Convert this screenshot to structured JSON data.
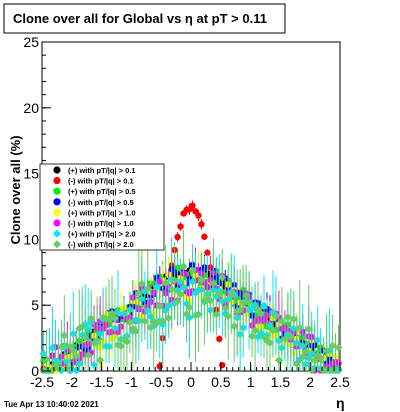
{
  "title": "Clone  over all for Global vs   η at pT > 0.11",
  "timestamp": "Tue Apr 13 10:40:02 2021",
  "chart_data": {
    "type": "scatter",
    "title": "Clone  over all for Global vs   η at pT > 0.11",
    "xlabel": "η",
    "ylabel": "Clone  over all (%)",
    "xlim": [
      -2.5,
      2.5
    ],
    "ylim": [
      0,
      25
    ],
    "x_ticks": [
      "-2.5",
      "-2",
      "-1.5",
      "-1",
      "-0.5",
      "0",
      "0.5",
      "1",
      "1.5",
      "2",
      "2.5"
    ],
    "y_ticks": [
      "0",
      "5",
      "10",
      "15",
      "20",
      "25"
    ],
    "legend_position": "left",
    "series": [
      {
        "name": "(+) with pT/|q| > 0.1",
        "color": "#000000",
        "marker": "circle",
        "profile": "base",
        "peak": 7.6,
        "scatter": 0.15,
        "err": 0.25
      },
      {
        "name": "(-) with pT/|q| > 0.1",
        "color": "#ff0000",
        "marker": "circle",
        "profile": "narrow",
        "peak": 12.5,
        "scatter": 0.2,
        "err": 0.3
      },
      {
        "name": "(+) with pT/|q| > 0.5",
        "color": "#00ee00",
        "marker": "circle",
        "profile": "base",
        "peak": 7.3,
        "scatter": 0.9,
        "err": 1.0
      },
      {
        "name": "(-) with pT/|q| > 0.5",
        "color": "#0000ff",
        "marker": "circle",
        "profile": "base",
        "peak": 7.4,
        "scatter": 0.8,
        "err": 0.9
      },
      {
        "name": "(+) with pT/|q| > 1.0",
        "color": "#ffff00",
        "marker": "circle",
        "profile": "base",
        "peak": 6.6,
        "scatter": 1.3,
        "err": 1.4
      },
      {
        "name": "(-) with pT/|q| > 1.0",
        "color": "#ff00ff",
        "marker": "circle",
        "profile": "base",
        "peak": 6.8,
        "scatter": 1.3,
        "err": 1.5
      },
      {
        "name": "(+) with pT/|q| > 2.0",
        "color": "#00e5ff",
        "marker": "diamond",
        "profile": "base",
        "peak": 5.8,
        "scatter": 1.8,
        "err": 2.2
      },
      {
        "name": "(-) with pT/|q| > 2.0",
        "color": "#66cc66",
        "marker": "diamond",
        "profile": "base",
        "peak": 6.2,
        "scatter": 2.0,
        "err": 2.5
      }
    ]
  }
}
